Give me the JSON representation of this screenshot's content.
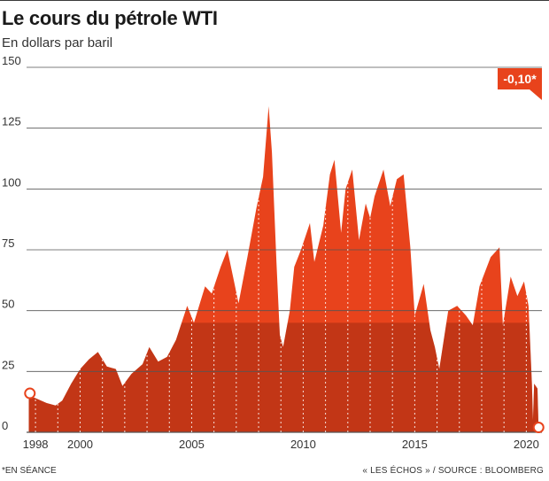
{
  "header": {
    "title": "Le cours du pétrole WTI",
    "subtitle": "En dollars par baril"
  },
  "badge": {
    "label": "-0,10*"
  },
  "footer": {
    "footnote": "*EN SÉANCE",
    "source": "« LES ÉCHOS » / SOURCE : BLOOMBERG"
  },
  "colors": {
    "fill": "#e8431c",
    "grid": "#555555",
    "text": "#333333",
    "marker": "#ffffff"
  },
  "chart_data": {
    "type": "area",
    "title": "Le cours du pétrole WTI",
    "subtitle": "En dollars par baril",
    "xlabel": "",
    "ylabel": "",
    "ylim": [
      0,
      150
    ],
    "xlim": [
      1997.6,
      2020.7
    ],
    "yticks": [
      0,
      25,
      50,
      75,
      100,
      125,
      150
    ],
    "xticks": [
      {
        "value": 1998,
        "label": "1998"
      },
      {
        "value": 2000,
        "label": "2000"
      },
      {
        "value": 2005,
        "label": "2005"
      },
      {
        "value": 2010,
        "label": "2010"
      },
      {
        "value": 2015,
        "label": "2015"
      },
      {
        "value": 2020,
        "label": "2020"
      }
    ],
    "grid": true,
    "start_marker": {
      "x": 1997.75,
      "y": 16
    },
    "end_marker": {
      "x": 2020.55,
      "y": 2
    },
    "series": [
      {
        "name": "",
        "points": [
          [
            1997.7,
            15
          ],
          [
            1998.0,
            14
          ],
          [
            1998.5,
            12
          ],
          [
            1998.9,
            11
          ],
          [
            1999.2,
            13
          ],
          [
            1999.6,
            20
          ],
          [
            2000.0,
            26
          ],
          [
            2000.4,
            30
          ],
          [
            2000.8,
            33
          ],
          [
            2001.2,
            27
          ],
          [
            2001.6,
            26
          ],
          [
            2001.9,
            19
          ],
          [
            2002.3,
            24
          ],
          [
            2002.8,
            28
          ],
          [
            2003.1,
            35
          ],
          [
            2003.5,
            29
          ],
          [
            2003.9,
            31
          ],
          [
            2004.3,
            38
          ],
          [
            2004.8,
            52
          ],
          [
            2005.1,
            45
          ],
          [
            2005.6,
            60
          ],
          [
            2005.9,
            57
          ],
          [
            2006.3,
            68
          ],
          [
            2006.6,
            75
          ],
          [
            2006.9,
            62
          ],
          [
            2007.1,
            53
          ],
          [
            2007.5,
            72
          ],
          [
            2007.9,
            92
          ],
          [
            2008.2,
            105
          ],
          [
            2008.45,
            134
          ],
          [
            2008.6,
            115
          ],
          [
            2008.8,
            70
          ],
          [
            2008.95,
            40
          ],
          [
            2009.1,
            35
          ],
          [
            2009.4,
            50
          ],
          [
            2009.6,
            68
          ],
          [
            2009.9,
            75
          ],
          [
            2010.3,
            86
          ],
          [
            2010.5,
            70
          ],
          [
            2010.9,
            85
          ],
          [
            2011.2,
            106
          ],
          [
            2011.4,
            112
          ],
          [
            2011.7,
            82
          ],
          [
            2011.9,
            100
          ],
          [
            2012.2,
            108
          ],
          [
            2012.5,
            79
          ],
          [
            2012.8,
            94
          ],
          [
            2013.0,
            88
          ],
          [
            2013.2,
            97
          ],
          [
            2013.6,
            108
          ],
          [
            2013.9,
            93
          ],
          [
            2014.2,
            104
          ],
          [
            2014.5,
            106
          ],
          [
            2014.8,
            76
          ],
          [
            2015.0,
            48
          ],
          [
            2015.4,
            61
          ],
          [
            2015.7,
            42
          ],
          [
            2015.9,
            35
          ],
          [
            2016.1,
            26
          ],
          [
            2016.5,
            50
          ],
          [
            2016.9,
            52
          ],
          [
            2017.3,
            48
          ],
          [
            2017.6,
            44
          ],
          [
            2017.9,
            60
          ],
          [
            2018.4,
            72
          ],
          [
            2018.8,
            76
          ],
          [
            2018.95,
            44
          ],
          [
            2019.3,
            64
          ],
          [
            2019.6,
            56
          ],
          [
            2019.9,
            62
          ],
          [
            2020.1,
            52
          ],
          [
            2020.25,
            20
          ],
          [
            2020.3,
            5
          ],
          [
            2020.35,
            20
          ],
          [
            2020.5,
            18
          ],
          [
            2020.55,
            2
          ]
        ]
      }
    ]
  }
}
